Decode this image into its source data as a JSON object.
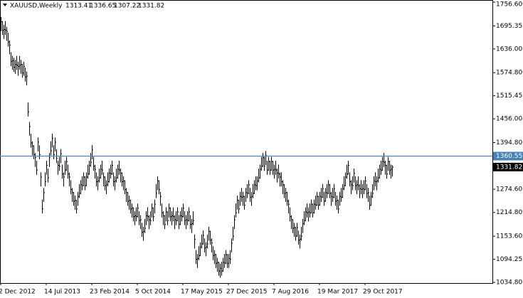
{
  "header": {
    "symbol": "XAUUSD,Weekly",
    "ohlc": [
      1313.41,
      1336.65,
      1307.22,
      1331.82
    ]
  },
  "chart_data": {
    "type": "ohlc",
    "color": "#000000",
    "xlim": [
      -0.5,
      345.5
    ],
    "xticks": [
      {
        "value": 0,
        "label": "2 Dec 2012"
      },
      {
        "value": 32,
        "label": "14 Jul 2013"
      },
      {
        "value": 64,
        "label": "23 Feb 2014"
      },
      {
        "value": 96,
        "label": "5 Oct 2014"
      },
      {
        "value": 128,
        "label": "17 May 2015"
      },
      {
        "value": 160,
        "label": "27 Dec 2015"
      },
      {
        "value": 192,
        "label": "7 Aug 2016"
      },
      {
        "value": 224,
        "label": "19 Mar 2017"
      },
      {
        "value": 256,
        "label": "29 Oct 2017"
      }
    ],
    "ylim": [
      1034.8,
      1756.6
    ],
    "yticks": [
      {
        "value": 1756.6,
        "label": "1756.60"
      },
      {
        "value": 1695.35,
        "label": "1695.35"
      },
      {
        "value": 1636,
        "label": "1636.00"
      },
      {
        "value": 1574.8,
        "label": "1574.80"
      },
      {
        "value": 1515.45,
        "label": "1515.45"
      },
      {
        "value": 1456,
        "label": "1456.00"
      },
      {
        "value": 1394.8,
        "label": "1394.80"
      },
      {
        "value": 1274.6,
        "label": "1274.60"
      },
      {
        "value": 1214.8,
        "label": "1214.80"
      },
      {
        "value": 1153.6,
        "label": "1153.60"
      },
      {
        "value": 1094.25,
        "label": "1094.25"
      },
      {
        "value": 1034.8,
        "label": "1034.80"
      }
    ],
    "level": {
      "value": 1360.55,
      "color": "#4682b4"
    },
    "high": [
      1718,
      1708,
      1698,
      1708,
      1693,
      1678,
      1658,
      1628,
      1618,
      1613,
      1608,
      1618,
      1603,
      1618,
      1608,
      1598,
      1603,
      1588,
      1578,
      1498,
      1448,
      1418,
      1398,
      1388,
      1368,
      1348,
      1408,
      1388,
      1318,
      1248,
      1278,
      1318,
      1348,
      1328,
      1368,
      1398,
      1418,
      1388,
      1408,
      1378,
      1348,
      1358,
      1378,
      1338,
      1318,
      1348,
      1358,
      1338,
      1318,
      1298,
      1278,
      1268,
      1258,
      1248,
      1268,
      1288,
      1298,
      1308,
      1318,
      1308,
      1318,
      1338,
      1348,
      1368,
      1388,
      1358,
      1338,
      1318,
      1308,
      1328,
      1338,
      1348,
      1318,
      1308,
      1298,
      1318,
      1328,
      1338,
      1348,
      1318,
      1308,
      1328,
      1338,
      1348,
      1328,
      1318,
      1308,
      1298,
      1278,
      1268,
      1258,
      1248,
      1238,
      1228,
      1218,
      1228,
      1238,
      1218,
      1208,
      1188,
      1178,
      1198,
      1218,
      1228,
      1208,
      1218,
      1238,
      1228,
      1248,
      1288,
      1308,
      1298,
      1268,
      1238,
      1218,
      1208,
      1228,
      1218,
      1238,
      1228,
      1218,
      1228,
      1208,
      1218,
      1228,
      1208,
      1218,
      1228,
      1238,
      1218,
      1208,
      1218,
      1228,
      1208,
      1198,
      1218,
      1158,
      1118,
      1108,
      1128,
      1138,
      1158,
      1168,
      1148,
      1138,
      1158,
      1178,
      1168,
      1148,
      1128,
      1118,
      1108,
      1098,
      1088,
      1083,
      1088,
      1098,
      1108,
      1118,
      1108,
      1108,
      1118,
      1148,
      1178,
      1208,
      1238,
      1258,
      1248,
      1268,
      1278,
      1268,
      1258,
      1278,
      1288,
      1298,
      1278,
      1268,
      1288,
      1298,
      1308,
      1308,
      1328,
      1338,
      1358,
      1368,
      1358,
      1373,
      1348,
      1358,
      1348,
      1358,
      1348,
      1338,
      1348,
      1328,
      1338,
      1318,
      1318,
      1298,
      1288,
      1278,
      1268,
      1248,
      1228,
      1208,
      1198,
      1188,
      1178,
      1188,
      1168,
      1158,
      1178,
      1198,
      1218,
      1228,
      1238,
      1228,
      1238,
      1248,
      1238,
      1248,
      1258,
      1268,
      1258,
      1268,
      1278,
      1288,
      1268,
      1278,
      1288,
      1298,
      1288,
      1268,
      1278,
      1288,
      1268,
      1258,
      1248,
      1268,
      1278,
      1288,
      1308,
      1318,
      1338,
      1348,
      1318,
      1298,
      1308,
      1328,
      1308,
      1298,
      1308,
      1288,
      1298,
      1288,
      1298,
      1308,
      1288,
      1278,
      1258,
      1268,
      1288,
      1308,
      1318,
      1308,
      1328,
      1338,
      1348,
      1358,
      1368,
      1348,
      1338,
      1358,
      1348,
      1338,
      1336.65
    ],
    "low": [
      1682,
      1672,
      1662,
      1672,
      1657,
      1642,
      1622,
      1592,
      1582,
      1577,
      1572,
      1582,
      1567,
      1582,
      1572,
      1562,
      1567,
      1552,
      1542,
      1462,
      1412,
      1382,
      1362,
      1352,
      1332,
      1312,
      1372,
      1352,
      1282,
      1212,
      1242,
      1282,
      1312,
      1292,
      1332,
      1362,
      1382,
      1352,
      1372,
      1342,
      1312,
      1322,
      1342,
      1302,
      1282,
      1312,
      1322,
      1302,
      1282,
      1262,
      1242,
      1232,
      1222,
      1212,
      1232,
      1252,
      1262,
      1272,
      1282,
      1272,
      1282,
      1302,
      1312,
      1332,
      1352,
      1322,
      1302,
      1282,
      1272,
      1292,
      1302,
      1312,
      1282,
      1272,
      1262,
      1282,
      1292,
      1302,
      1312,
      1282,
      1272,
      1292,
      1302,
      1312,
      1292,
      1282,
      1272,
      1262,
      1242,
      1232,
      1222,
      1212,
      1202,
      1192,
      1182,
      1192,
      1202,
      1182,
      1172,
      1152,
      1142,
      1162,
      1182,
      1192,
      1172,
      1182,
      1202,
      1192,
      1212,
      1252,
      1272,
      1262,
      1232,
      1202,
      1182,
      1172,
      1192,
      1182,
      1202,
      1192,
      1182,
      1192,
      1172,
      1182,
      1192,
      1172,
      1182,
      1192,
      1202,
      1182,
      1172,
      1182,
      1192,
      1172,
      1162,
      1182,
      1122,
      1082,
      1072,
      1092,
      1102,
      1122,
      1132,
      1112,
      1102,
      1122,
      1142,
      1132,
      1112,
      1092,
      1082,
      1072,
      1062,
      1052,
      1047,
      1052,
      1062,
      1072,
      1082,
      1072,
      1072,
      1082,
      1112,
      1142,
      1172,
      1202,
      1222,
      1212,
      1232,
      1242,
      1232,
      1222,
      1242,
      1252,
      1262,
      1242,
      1232,
      1252,
      1262,
      1272,
      1272,
      1292,
      1302,
      1322,
      1332,
      1322,
      1337,
      1312,
      1322,
      1312,
      1322,
      1312,
      1302,
      1312,
      1292,
      1302,
      1282,
      1282,
      1262,
      1252,
      1242,
      1232,
      1212,
      1192,
      1172,
      1162,
      1152,
      1142,
      1152,
      1132,
      1122,
      1142,
      1162,
      1182,
      1192,
      1202,
      1192,
      1202,
      1212,
      1202,
      1212,
      1222,
      1232,
      1222,
      1232,
      1242,
      1252,
      1232,
      1242,
      1252,
      1262,
      1252,
      1232,
      1242,
      1252,
      1232,
      1222,
      1212,
      1232,
      1242,
      1252,
      1272,
      1282,
      1302,
      1312,
      1282,
      1262,
      1272,
      1292,
      1272,
      1262,
      1272,
      1252,
      1262,
      1252,
      1262,
      1272,
      1252,
      1242,
      1222,
      1232,
      1252,
      1272,
      1282,
      1272,
      1292,
      1302,
      1312,
      1322,
      1332,
      1312,
      1302,
      1322,
      1312,
      1302,
      1307.22
    ],
    "close": [
      1706,
      1684,
      1686,
      1684,
      1681,
      1654,
      1646,
      1604,
      1606,
      1589,
      1596,
      1594,
      1591,
      1594,
      1596,
      1574,
      1591,
      1564,
      1566,
      1474,
      1436,
      1394,
      1386,
      1364,
      1356,
      1324,
      1396,
      1364,
      1306,
      1224,
      1266,
      1294,
      1336,
      1304,
      1356,
      1374,
      1406,
      1364,
      1396,
      1354,
      1336,
      1334,
      1366,
      1314,
      1306,
      1324,
      1346,
      1314,
      1306,
      1274,
      1266,
      1244,
      1246,
      1224,
      1256,
      1264,
      1286,
      1284,
      1306,
      1284,
      1306,
      1314,
      1336,
      1344,
      1376,
      1334,
      1326,
      1294,
      1296,
      1304,
      1326,
      1324,
      1306,
      1284,
      1286,
      1294,
      1316,
      1314,
      1336,
      1294,
      1296,
      1304,
      1326,
      1324,
      1316,
      1294,
      1296,
      1274,
      1266,
      1244,
      1246,
      1224,
      1226,
      1204,
      1206,
      1204,
      1226,
      1194,
      1196,
      1164,
      1166,
      1174,
      1206,
      1204,
      1196,
      1194,
      1226,
      1204,
      1236,
      1264,
      1296,
      1274,
      1256,
      1214,
      1206,
      1184,
      1216,
      1194,
      1226,
      1204,
      1206,
      1204,
      1196,
      1194,
      1216,
      1184,
      1206,
      1204,
      1226,
      1194,
      1196,
      1194,
      1216,
      1184,
      1186,
      1194,
      1146,
      1094,
      1096,
      1104,
      1126,
      1134,
      1156,
      1124,
      1126,
      1134,
      1166,
      1144,
      1136,
      1104,
      1106,
      1084,
      1086,
      1064,
      1071,
      1064,
      1086,
      1084,
      1106,
      1084,
      1096,
      1094,
      1136,
      1154,
      1196,
      1214,
      1246,
      1224,
      1256,
      1254,
      1256,
      1234,
      1266,
      1264,
      1286,
      1254,
      1256,
      1264,
      1286,
      1284,
      1296,
      1304,
      1326,
      1334,
      1356,
      1334,
      1361,
      1324,
      1346,
      1324,
      1346,
      1324,
      1326,
      1324,
      1316,
      1314,
      1306,
      1294,
      1286,
      1264,
      1266,
      1244,
      1236,
      1204,
      1196,
      1174,
      1176,
      1154,
      1176,
      1144,
      1146,
      1154,
      1186,
      1194,
      1216,
      1214,
      1216,
      1214,
      1236,
      1214,
      1236,
      1234,
      1256,
      1234,
      1256,
      1254,
      1276,
      1244,
      1266,
      1264,
      1286,
      1264,
      1256,
      1254,
      1276,
      1244,
      1246,
      1224,
      1256,
      1254,
      1276,
      1284,
      1306,
      1314,
      1336,
      1294,
      1286,
      1284,
      1316,
      1284,
      1286,
      1284,
      1276,
      1274,
      1276,
      1274,
      1296,
      1264,
      1266,
      1234,
      1256,
      1264,
      1296,
      1294,
      1296,
      1304,
      1326,
      1324,
      1346,
      1344,
      1336,
      1314,
      1346,
      1324,
      1326,
      1331.82
    ]
  }
}
